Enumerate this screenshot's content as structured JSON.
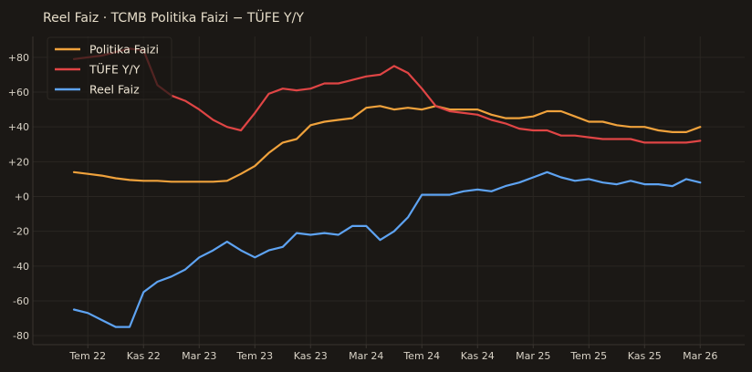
{
  "chart_data": {
    "type": "line",
    "title": "Reel Faiz · TCMB Politika Faizi − TÜFE Y/Y",
    "xlabel": "",
    "ylabel": "",
    "x_ticks": [
      "Tem 22",
      "Kas 22",
      "Mar 23",
      "Tem 23",
      "Kas 23",
      "Mar 24",
      "Tem 24",
      "Kas 24",
      "Mar 25",
      "Tem 25",
      "Kas 25",
      "Mar 26"
    ],
    "y_ticks": [
      "+80",
      "+60",
      "+40",
      "+20",
      "+0",
      "-20",
      "-40",
      "-60",
      "-80"
    ],
    "ylim": [
      -84,
      94
    ],
    "grid": true,
    "legend": "top-left",
    "x": [
      "2022-06",
      "2022-07",
      "2022-08",
      "2022-09",
      "2022-10",
      "2022-11",
      "2022-12",
      "2023-01",
      "2023-02",
      "2023-03",
      "2023-04",
      "2023-05",
      "2023-06",
      "2023-07",
      "2023-08",
      "2023-09",
      "2023-10",
      "2023-11",
      "2023-12",
      "2024-01",
      "2024-02",
      "2024-03",
      "2024-04",
      "2024-05",
      "2024-06",
      "2024-07",
      "2024-08",
      "2024-09",
      "2024-10",
      "2024-11",
      "2024-12",
      "2025-01",
      "2025-02",
      "2025-03",
      "2025-04",
      "2025-05",
      "2025-06",
      "2025-07",
      "2025-08",
      "2025-09",
      "2025-10",
      "2025-11",
      "2025-12",
      "2026-01",
      "2026-02",
      "2026-03"
    ],
    "series": [
      {
        "name": "Politika Faizi",
        "color": "#f0a23c",
        "values": [
          14,
          13,
          12,
          10.5,
          9.5,
          9,
          9,
          8.5,
          8.5,
          8.5,
          8.5,
          9,
          13,
          17.5,
          25,
          31,
          33,
          41,
          43,
          44,
          45,
          51,
          52,
          50,
          51,
          50,
          52,
          50,
          50,
          50,
          47,
          45,
          45,
          46,
          49,
          49,
          46,
          43,
          43,
          41,
          40,
          40,
          38,
          37,
          37,
          40
        ]
      },
      {
        "name": "TÜFE Y/Y",
        "color": "#e04545",
        "values": [
          79,
          80,
          81,
          83,
          85,
          84,
          64,
          58,
          55,
          50,
          44,
          40,
          38,
          48,
          59,
          62,
          61,
          62,
          65,
          65,
          67,
          69,
          70,
          75,
          71,
          62,
          52,
          49,
          48,
          47,
          44,
          42,
          39,
          38,
          38,
          35,
          35,
          34,
          33,
          33,
          33,
          31,
          31,
          31,
          31,
          32
        ]
      },
      {
        "name": "Reel Faiz",
        "color": "#5ea3f2",
        "values": [
          -65,
          -67,
          -71,
          -75,
          -75,
          -55,
          -49,
          -46,
          -42,
          -35,
          -31,
          -26,
          -31,
          -35,
          -31,
          -29,
          -21,
          -22,
          -21,
          -22,
          -17,
          -17,
          -25,
          -20,
          -12,
          1,
          1,
          1,
          3,
          4,
          3,
          6,
          8,
          11,
          14,
          11,
          9,
          10,
          8,
          7,
          9,
          7,
          7,
          6,
          10,
          8
        ]
      }
    ]
  }
}
